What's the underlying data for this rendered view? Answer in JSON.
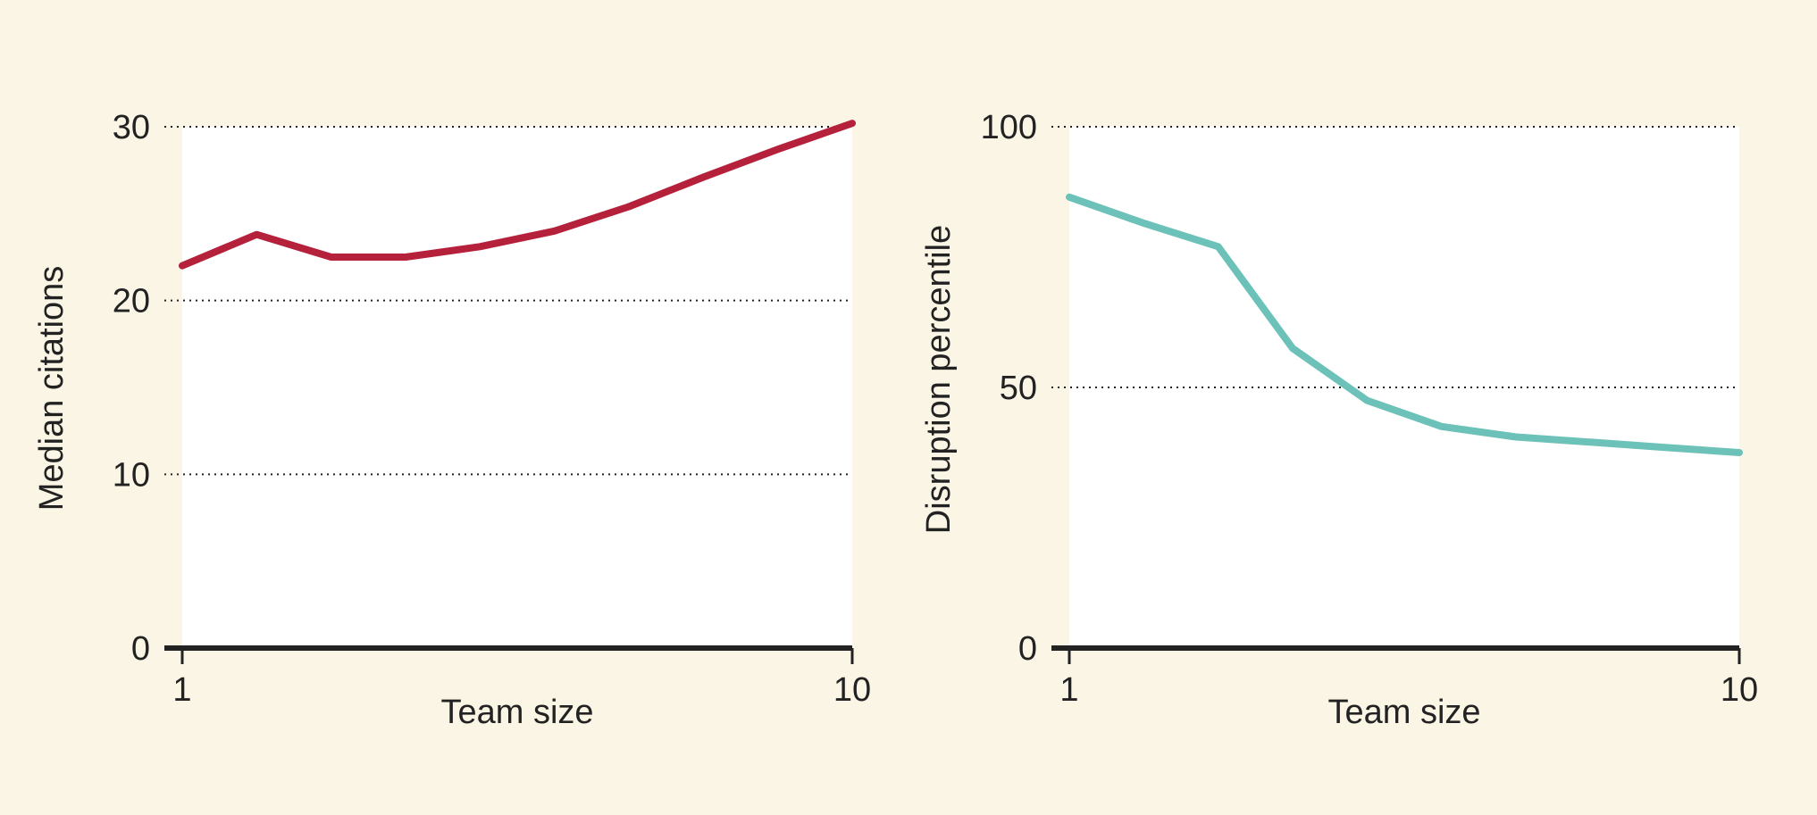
{
  "chart_data": [
    {
      "type": "line",
      "xlabel": "Team size",
      "ylabel": "Median citations",
      "x_tick_labels": [
        "1",
        "10"
      ],
      "yticks": [
        0,
        10,
        20,
        30
      ],
      "xlim": [
        1,
        10
      ],
      "ylim": [
        0,
        30
      ],
      "grid": "horizontal dotted",
      "series": [
        {
          "x": [
            1,
            2,
            3,
            4,
            5,
            6,
            7,
            8,
            9,
            10
          ],
          "values": [
            22,
            23.8,
            22.5,
            22.5,
            23.1,
            24,
            25.4,
            27.1,
            28.7,
            30.2
          ],
          "color": "#b5203a"
        }
      ]
    },
    {
      "type": "line",
      "xlabel": "Team size",
      "ylabel": "Disruption percentile",
      "x_tick_labels": [
        "1",
        "10"
      ],
      "yticks": [
        0,
        50,
        100
      ],
      "xlim": [
        1,
        10
      ],
      "ylim": [
        0,
        100
      ],
      "grid": "horizontal dotted",
      "series": [
        {
          "x": [
            1,
            2,
            3,
            4,
            5,
            6,
            7,
            8,
            9,
            10
          ],
          "values": [
            86.5,
            81.5,
            77,
            57.5,
            47.5,
            42.5,
            40.5,
            39.5,
            38.5,
            37.5
          ],
          "color": "#6cc1b8"
        }
      ]
    }
  ],
  "colors": {
    "background": "#faf5e4",
    "plot_area": "#ffffff",
    "axis": "#222222"
  }
}
